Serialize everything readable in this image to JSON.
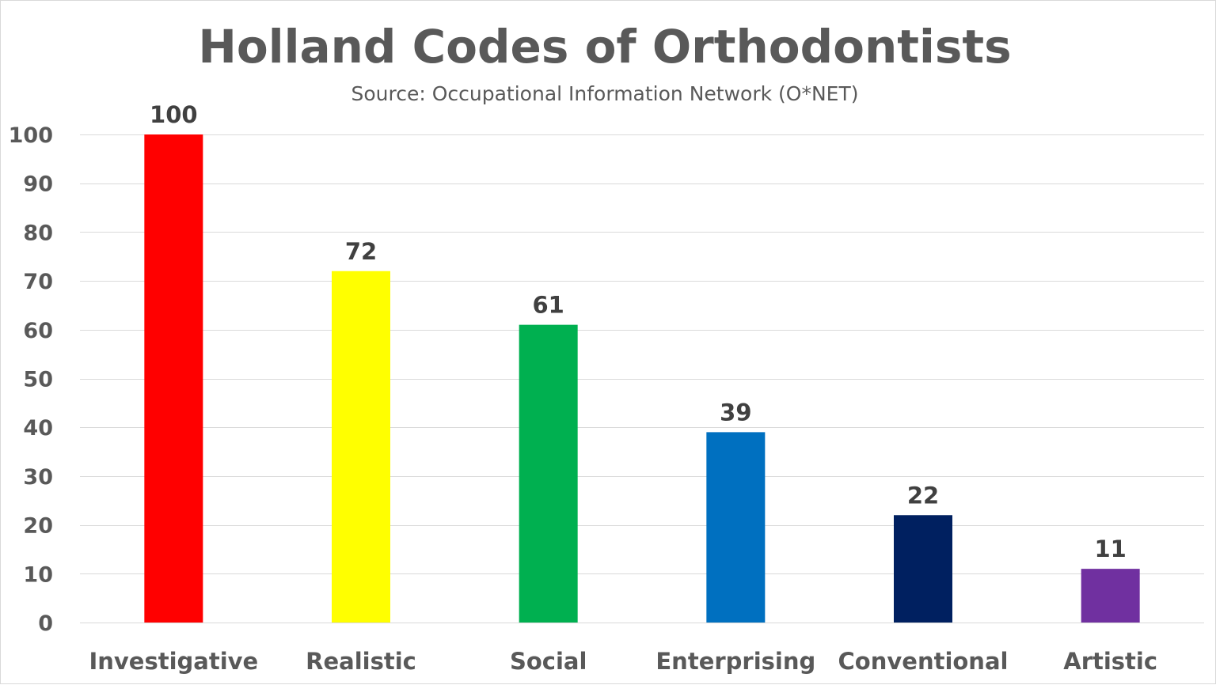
{
  "chart_data": {
    "type": "bar",
    "title": "Holland Codes of Orthodontists",
    "subtitle": "Source: Occupational Information Network (O*NET)",
    "xlabel": "",
    "ylabel": "",
    "categories": [
      "Investigative",
      "Realistic",
      "Social",
      "Enterprising",
      "Conventional",
      "Artistic"
    ],
    "values": [
      100,
      72,
      61,
      39,
      22,
      11
    ],
    "data_labels": [
      "100",
      "72",
      "61",
      "39",
      "22",
      "11"
    ],
    "colors": [
      "#ff0000",
      "#ffff00",
      "#00b050",
      "#0070c0",
      "#002060",
      "#7030a0"
    ],
    "ylim": [
      0,
      100
    ],
    "y_ticks": [
      0,
      10,
      20,
      30,
      40,
      50,
      60,
      70,
      80,
      90,
      100
    ],
    "y_tick_labels": [
      "0",
      "10",
      "20",
      "30",
      "40",
      "50",
      "60",
      "70",
      "80",
      "90",
      "100"
    ],
    "grid": true,
    "legend": "none"
  }
}
